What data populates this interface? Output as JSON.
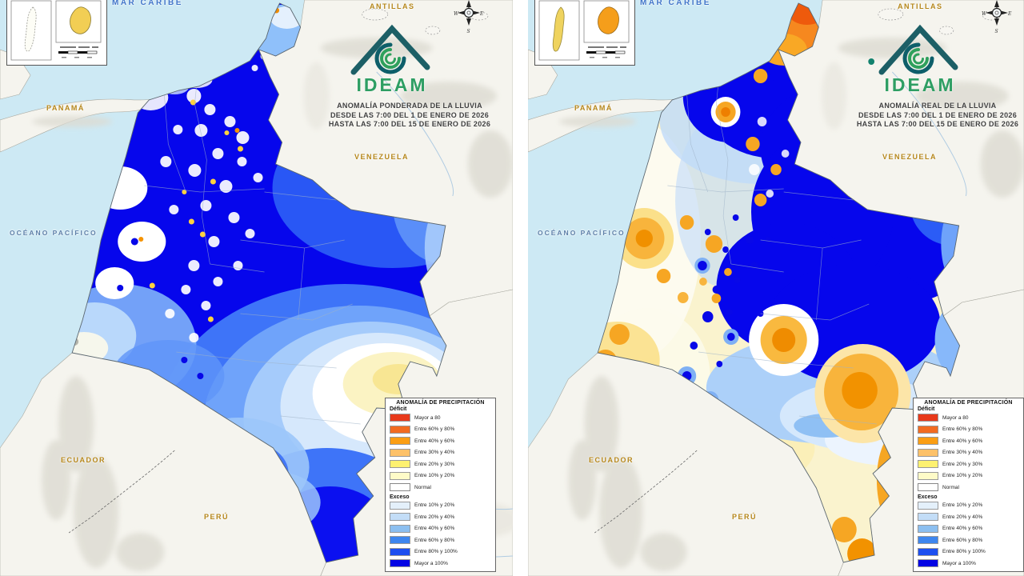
{
  "panels": [
    {
      "id": "ponderada",
      "title_lines": [
        "ANOMALÍA PONDERADA DE LA LLUVIA",
        "DESDE LAS 7:00 DEL 1 DE ENERO DE 2026",
        "HASTA LAS 7:00 DEL 15 DE ENERO DE 2026"
      ]
    },
    {
      "id": "real",
      "title_lines": [
        "ANOMALÍA REAL DE LA LLUVIA",
        "DESDE LAS 7:00 DEL 1 DE ENERO DE 2026",
        "HASTA LAS 7:00 DEL 15 DE ENERO DE 2026"
      ]
    }
  ],
  "logo": {
    "text": "IDEAM"
  },
  "geo_labels": {
    "mar_caribe": "MAR CARIBE",
    "antillas": "ANTILLAS",
    "panama": "PANAMÁ",
    "venezuela": "VENEZUELA",
    "oceano_pacifico": "OCÉANO PACÍFICO",
    "ecuador": "ECUADOR",
    "peru": "PERÚ"
  },
  "compass": {
    "w": "W",
    "e": "E",
    "s": "S"
  },
  "legend": {
    "title": "ANOMALÍA DE PRECIPITACIÓN",
    "deficit_label": "Déficit",
    "exceso_label": "Exceso",
    "normal_label": "Normal",
    "normal_color": "#FFFFFF",
    "deficit": [
      {
        "label": "Mayor a 80",
        "color": "#E8391B"
      },
      {
        "label": "Entre 60% y 80%",
        "color": "#F26B21"
      },
      {
        "label": "Entre 40% y 60%",
        "color": "#FB9E13"
      },
      {
        "label": "Entre 30% y 40%",
        "color": "#FDC169"
      },
      {
        "label": "Entre 20% y 30%",
        "color": "#FDF170"
      },
      {
        "label": "Entre 10% y 20%",
        "color": "#FEFBC8"
      }
    ],
    "exceso": [
      {
        "label": "Entre 10% y 20%",
        "color": "#E4F0FB"
      },
      {
        "label": "Entre 20% y 40%",
        "color": "#C3DDF7"
      },
      {
        "label": "Entre 40% y 60%",
        "color": "#8CBFF0"
      },
      {
        "label": "Entre 60% y 80%",
        "color": "#3E86EE"
      },
      {
        "label": "Entre 80% y 100%",
        "color": "#1D4FF0"
      },
      {
        "label": "Mayor a 100%",
        "color": "#0404E4"
      }
    ]
  },
  "map_colors": {
    "sea": "#CDE9F4",
    "neighbor_land": "#F5F4EE",
    "colombia_border": "#5B6770",
    "excess_max_blue": "#0606EC",
    "deficit_strong_orange": "#F6881F"
  }
}
